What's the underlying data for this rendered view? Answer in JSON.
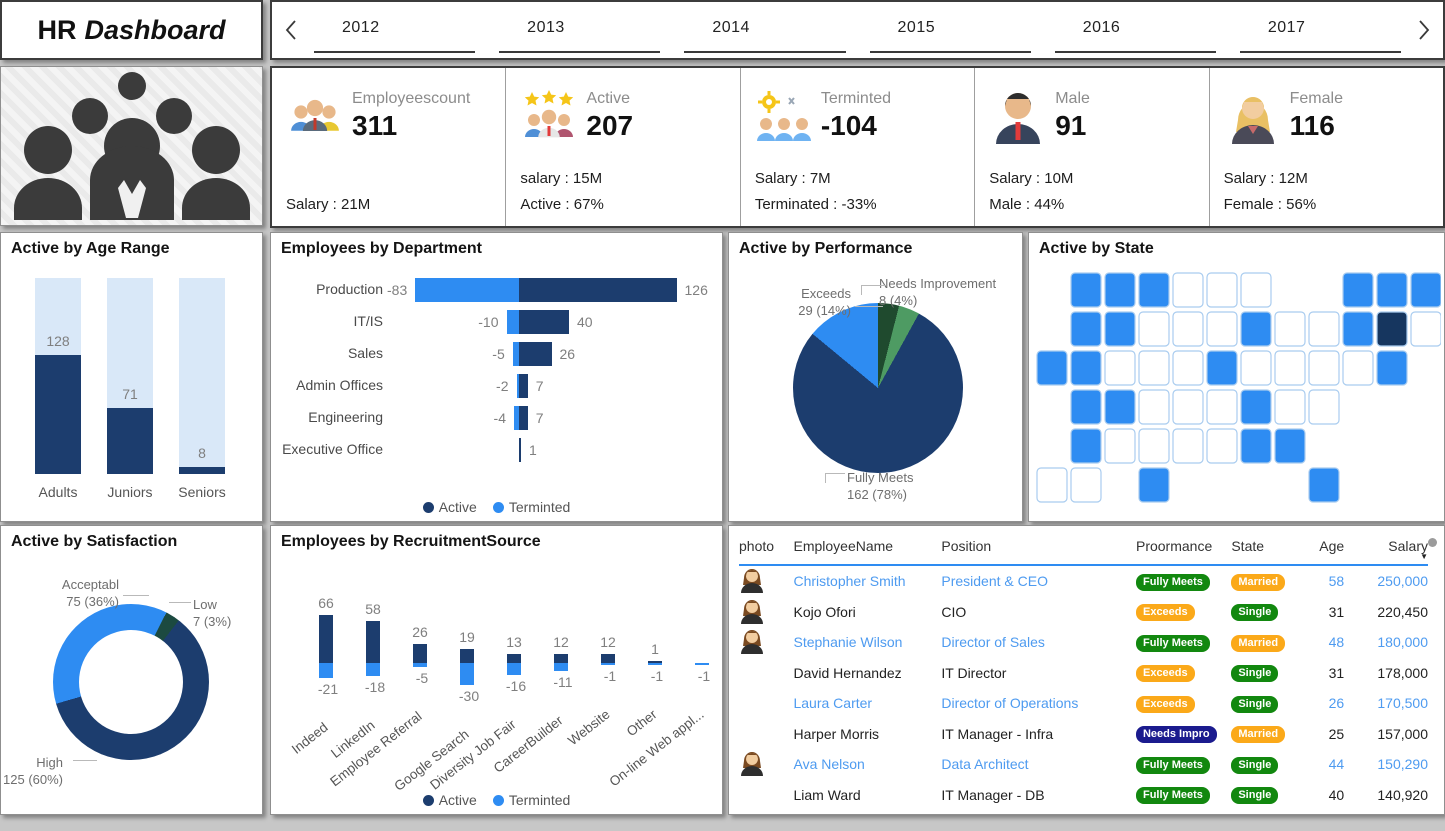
{
  "title": {
    "prefix": "HR",
    "suffix": "Dashboard"
  },
  "year_nav": {
    "years": [
      "2012",
      "2013",
      "2014",
      "2015",
      "2016",
      "2017"
    ]
  },
  "kpis": [
    {
      "icon": "employees-group-icon",
      "label": "Employeescount",
      "value": "311",
      "lines": [
        "Salary : 21M"
      ]
    },
    {
      "icon": "stars-people-icon",
      "label": "Active",
      "value": "207",
      "lines": [
        "salary : 15M",
        "Active : 67%"
      ]
    },
    {
      "icon": "gear-people-icon",
      "label": "Terminted",
      "value": "-104",
      "lines": [
        "Salary : 7M",
        "Terminated : -33%"
      ]
    },
    {
      "icon": "male-icon",
      "label": "Male",
      "value": "91",
      "lines": [
        "Salary : 10M",
        "Male : 44%"
      ]
    },
    {
      "icon": "female-icon",
      "label": "Female",
      "value": "116",
      "lines": [
        "Salary : 12M",
        "Female : 56%"
      ]
    }
  ],
  "colors": {
    "active_navy": "#1c3d6e",
    "terminated_blue": "#2e8cf2",
    "track_light": "#d9e8f8",
    "dark_green": "#1f4a2e",
    "mid_green": "#4e9b63",
    "low_teal": "#1c4a40",
    "badge_green": "#12880f",
    "badge_orange": "#fba919",
    "badge_navy": "#1b1b8e",
    "link_blue": "#4e9bf0",
    "map_active": "#2e8cf2",
    "map_dark": "#16365f",
    "map_stroke": "#a9ccef"
  },
  "chart_data": [
    {
      "id": "age_range",
      "type": "bar",
      "title": "Active by Age Range",
      "categories": [
        "Adults",
        "Juniors",
        "Seniors"
      ],
      "values": [
        128,
        71,
        8
      ],
      "ylim": [
        0,
        210
      ],
      "grid": false
    },
    {
      "id": "department",
      "type": "bar",
      "orientation": "horizontal",
      "title": "Employees by Department",
      "categories": [
        "Production",
        "IT/IS",
        "Sales",
        "Admin Offices",
        "Engineering",
        "Executive Office"
      ],
      "series": [
        {
          "name": "Active",
          "values": [
            126,
            40,
            26,
            7,
            7,
            1
          ]
        },
        {
          "name": "Terminted",
          "values": [
            -83,
            -10,
            -5,
            -2,
            -4,
            null
          ]
        }
      ],
      "legend": [
        "Active",
        "Terminted"
      ],
      "legend_position": "bottom"
    },
    {
      "id": "performance",
      "type": "pie",
      "title": "Active by Performance",
      "slices": [
        {
          "label": "Needs Improvement",
          "value": 8,
          "pct": 4
        },
        {
          "label": "",
          "value": null,
          "pct": 4
        },
        {
          "label": "Fully Meets",
          "value": 162,
          "pct": 78
        },
        {
          "label": "Exceeds",
          "value": 29,
          "pct": 14
        }
      ],
      "label_texts": {
        "exceeds": [
          "Exceeds",
          "29 (14%)"
        ],
        "needs": [
          "Needs Improvement",
          "8 (4%)"
        ],
        "fully": [
          "Fully Meets",
          "162 (78%)"
        ]
      }
    },
    {
      "id": "satisfaction",
      "type": "pie",
      "subtype": "donut",
      "title": "Active by Satisfaction",
      "slices": [
        {
          "label": "High",
          "value": 125,
          "pct": 60
        },
        {
          "label": "Acceptabl",
          "value": 75,
          "pct": 36
        },
        {
          "label": "Low",
          "value": 7,
          "pct": 3
        }
      ],
      "label_texts": {
        "acceptabl": [
          "Acceptabl",
          "75 (36%)"
        ],
        "low": [
          "Low",
          "7 (3%)"
        ],
        "high": [
          "High",
          "125 (60%)"
        ]
      }
    },
    {
      "id": "recruitment",
      "type": "bar",
      "orientation": "vertical",
      "title": "Employees by RecruitmentSource",
      "categories": [
        "Indeed",
        "LinkedIn",
        "Employee Referral",
        "Google Search",
        "Diversity Job Fair",
        "CareerBuilder",
        "Website",
        "Other",
        "On-line Web appl..."
      ],
      "series": [
        {
          "name": "Active",
          "values": [
            66,
            58,
            26,
            19,
            13,
            12,
            12,
            1,
            null
          ]
        },
        {
          "name": "Terminted",
          "values": [
            -21,
            -18,
            -5,
            -30,
            -16,
            -11,
            -1,
            -1,
            -1
          ]
        }
      ],
      "legend": [
        "Active",
        "Terminted"
      ],
      "legend_position": "bottom"
    }
  ],
  "map": {
    "title": "Active by State",
    "active_states": [
      "WA",
      "OR",
      "CA",
      "NV",
      "ID",
      "MT",
      "ND",
      "UT",
      "CO",
      "AZ",
      "TX",
      "IN",
      "KY",
      "NC",
      "AL",
      "GA",
      "FL",
      "NY",
      "CT",
      "VT",
      "NH",
      "ME"
    ],
    "dark_state": "MA"
  },
  "table": {
    "columns": [
      "photo",
      "EmployeeName",
      "Position",
      "Proormance",
      "State",
      "Age",
      "Salary"
    ],
    "sort_column": "Salary",
    "rows": [
      {
        "photo": true,
        "link": true,
        "name": "Christopher Smith",
        "position": "President & CEO",
        "performance": "Fully Meets",
        "state": "Married",
        "age": "58",
        "salary": "250,000"
      },
      {
        "photo": true,
        "link": false,
        "name": "Kojo Ofori",
        "position": "CIO",
        "performance": "Exceeds",
        "state": "Single",
        "age": "31",
        "salary": "220,450"
      },
      {
        "photo": true,
        "link": true,
        "name": "Stephanie Wilson",
        "position": "Director of Sales",
        "performance": "Fully Meets",
        "state": "Married",
        "age": "48",
        "salary": "180,000"
      },
      {
        "photo": false,
        "link": false,
        "name": "David Hernandez",
        "position": "IT Director",
        "performance": "Exceeds",
        "state": "Single",
        "age": "31",
        "salary": "178,000"
      },
      {
        "photo": false,
        "link": true,
        "name": "Laura Carter",
        "position": "Director of Operations",
        "performance": "Exceeds",
        "state": "Single",
        "age": "26",
        "salary": "170,500"
      },
      {
        "photo": false,
        "link": false,
        "name": "Harper Morris",
        "position": "IT Manager - Infra",
        "performance": "Needs Impro",
        "state": "Married",
        "age": "25",
        "salary": "157,000"
      },
      {
        "photo": true,
        "link": true,
        "name": "Ava Nelson",
        "position": "Data Architect",
        "performance": "Fully Meets",
        "state": "Single",
        "age": "44",
        "salary": "150,290"
      },
      {
        "photo": false,
        "link": false,
        "name": "Liam Ward",
        "position": "IT Manager - DB",
        "performance": "Fully Meets",
        "state": "Single",
        "age": "40",
        "salary": "140,920"
      }
    ]
  }
}
